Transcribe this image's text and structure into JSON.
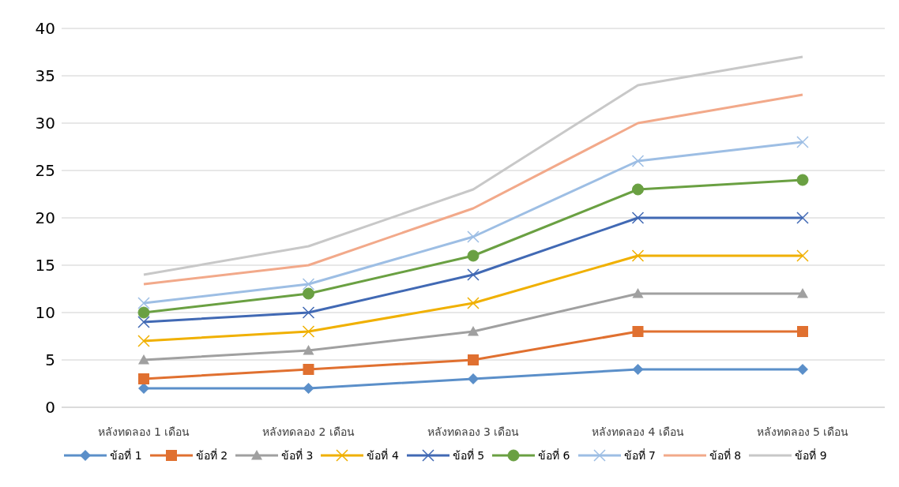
{
  "chart_data": {
    "type": "line",
    "categories": [
      "หลังทดลอง 1 เดือน",
      "หลังทดลอง 2 เดือน",
      "หลังทดลอง 3 เดือน",
      "หลังทดลอง 4 เดือน",
      "หลังทดลอง 5 เดือน"
    ],
    "ylim": [
      0,
      40
    ],
    "yticks": [
      0,
      5,
      10,
      15,
      20,
      25,
      30,
      35,
      40
    ],
    "grid": "y",
    "legend": "bottom",
    "series": [
      {
        "name": "ข้อที่ 1",
        "color": "#5b8fc9",
        "marker": "diamond",
        "values": [
          2,
          2,
          3,
          4,
          4
        ]
      },
      {
        "name": "ข้อที่ 2",
        "color": "#e07030",
        "marker": "square",
        "values": [
          3,
          4,
          5,
          8,
          8
        ]
      },
      {
        "name": "ข้อที่ 3",
        "color": "#a0a0a0",
        "marker": "triangle",
        "values": [
          5,
          6,
          8,
          12,
          12
        ]
      },
      {
        "name": "ข้อที่ 4",
        "color": "#f0b000",
        "marker": "cross",
        "values": [
          7,
          8,
          11,
          16,
          16
        ]
      },
      {
        "name": "ข้อที่ 5",
        "color": "#4169b4",
        "marker": "cross",
        "values": [
          9,
          10,
          14,
          20,
          20
        ]
      },
      {
        "name": "ข้อที่ 6",
        "color": "#6aa042",
        "marker": "circle",
        "values": [
          10,
          12,
          16,
          23,
          24
        ]
      },
      {
        "name": "ข้อที่ 7",
        "color": "#9dbee4",
        "marker": "cross",
        "values": [
          11,
          13,
          18,
          26,
          28
        ]
      },
      {
        "name": "ข้อที่ 8",
        "color": "#f2a98a",
        "marker": "none",
        "values": [
          13,
          15,
          21,
          30,
          33
        ]
      },
      {
        "name": "ข้อที่ 9",
        "color": "#c8c8c8",
        "marker": "none",
        "values": [
          14,
          17,
          23,
          34,
          37
        ]
      }
    ]
  }
}
